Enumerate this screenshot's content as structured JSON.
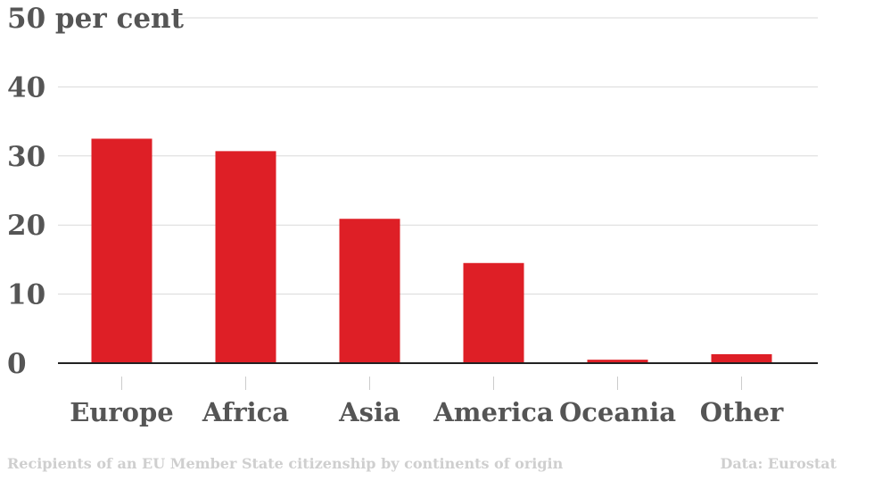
{
  "chart_data": {
    "type": "bar",
    "categories": [
      "Europe",
      "Africa",
      "Asia",
      "America",
      "Oceania",
      "Other"
    ],
    "values": [
      32.5,
      30.7,
      20.9,
      14.5,
      0.5,
      1.3
    ],
    "ylim": [
      0,
      50
    ],
    "yticks": [
      0,
      10,
      20,
      30,
      40,
      50
    ],
    "y_top_tick_label": "50 per cent",
    "bar_color": "#de1f26",
    "grid": true,
    "legend": "none"
  },
  "footer": {
    "caption": "Recipients of an EU Member State citizenship by continents of origin",
    "source": "Data: Eurostat"
  }
}
